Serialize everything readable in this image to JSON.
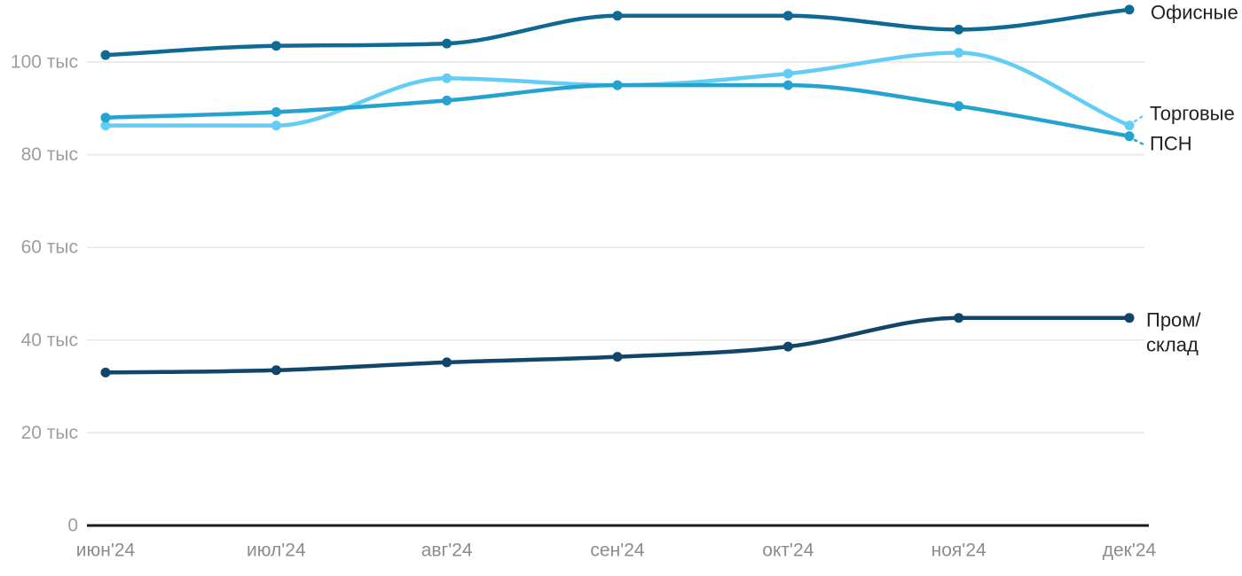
{
  "chart_data": {
    "type": "line",
    "title": "",
    "xlabel": "",
    "ylabel": "",
    "unit": "тыс",
    "categories": [
      "июн'24",
      "июл'24",
      "авг'24",
      "сен'24",
      "окт'24",
      "ноя'24",
      "дек'24"
    ],
    "ylim": [
      0,
      113.5
    ],
    "grid": true,
    "legend_position": "right-inline-annotations",
    "y_ticks": [
      {
        "value": 0,
        "label": "0"
      },
      {
        "value": 20,
        "label": "20 тыс"
      },
      {
        "value": 40,
        "label": "40 тыс"
      },
      {
        "value": 60,
        "label": "60 тыс"
      },
      {
        "value": 80,
        "label": "80 тыс"
      },
      {
        "value": 100,
        "label": "100 тыс"
      }
    ],
    "series": [
      {
        "name": "Торговые",
        "color": "#63cdf6",
        "values": [
          86.3,
          86.3,
          96.5,
          95.0,
          97.5,
          102.0,
          86.3
        ],
        "label": {
          "lines": [
            "Торговые"
          ],
          "x": 1296,
          "y": 128,
          "line_height": 28,
          "connector": {
            "x1": 1279,
            "y1": 137,
            "x2": 1291,
            "y2": 129
          }
        }
      },
      {
        "name": "ПСН",
        "color": "#25a2d0",
        "values": [
          88.0,
          89.2,
          91.7,
          95.0,
          95.0,
          90.5,
          84.0
        ],
        "label": {
          "lines": [
            "ПСН"
          ],
          "x": 1296,
          "y": 162,
          "line_height": 28,
          "connector": {
            "x1": 1279,
            "y1": 158,
            "x2": 1291,
            "y2": 164
          }
        }
      },
      {
        "name": "Офисные",
        "color": "#0f6a93",
        "values": [
          101.5,
          103.5,
          104.0,
          110.0,
          110.0,
          107.0,
          111.3
        ],
        "label": {
          "lines": [
            "Офисные"
          ],
          "x": 1297,
          "y": 14,
          "line_height": 28,
          "connector": null
        }
      },
      {
        "name": "Пром/склад",
        "color": "#114569",
        "values": [
          33.0,
          33.5,
          35.2,
          36.4,
          38.6,
          44.8,
          44.8
        ],
        "label": {
          "lines": [
            "Пром/",
            "склад"
          ],
          "x": 1292,
          "y": 361,
          "line_height": 28,
          "connector": null
        }
      }
    ]
  },
  "style": {
    "background": "#ffffff",
    "grid_color": "#e9e9e9",
    "axis_color": "#1c1c1c",
    "y_tick_color": "#9e9e9e",
    "x_tick_color": "#8c8c8c",
    "annotation_color": "#222222"
  }
}
